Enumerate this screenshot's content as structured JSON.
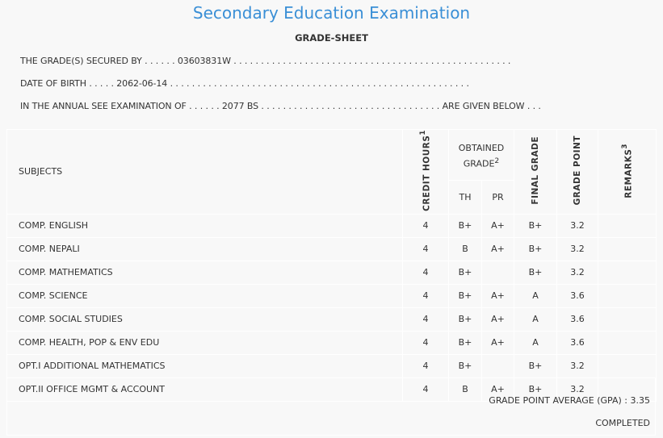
{
  "header": {
    "title": "Secondary Education Examination",
    "subtitle": "GRADE-SHEET"
  },
  "info": {
    "line1": "THE GRADE(S) SECURED BY . . . . . . 03603831W . . . . . . . . . . . . . . . . . . . . . . . . . . . . . . . . . . . . . . . . . . . . . . . . . . .",
    "line2": "DATE OF BIRTH . . . . . 2062-06-14 . . . . . . . . . . . . . . . . . . . . . . . . . . . . . . . . . . . . . . . . . . . . . . . . . . . . . . .",
    "line3": "IN THE ANNUAL SEE EXAMINATION OF . . . . . . 2077 BS . . . . . . . . . . . . . . . . . . . . . . . . . . . . . . . . . ARE GIVEN BELOW . . ."
  },
  "table": {
    "headers": {
      "subjects": "SUBJECTS",
      "credit": "CREDIT HOURS",
      "credit_sup": "1",
      "obtained": "OBTAINED GRADE",
      "obtained_sup": "2",
      "th": "TH",
      "pr": "PR",
      "final": "FINAL GRADE",
      "gp": "GRADE POINT",
      "remarks": "REMARKS",
      "remarks_sup": "3"
    },
    "rows": [
      {
        "subject": "COMP. ENGLISH",
        "credit": "4",
        "th": "B+",
        "pr": "A+",
        "final": "B+",
        "gp": "3.2",
        "remarks": ""
      },
      {
        "subject": "COMP. NEPALI",
        "credit": "4",
        "th": "B",
        "pr": "A+",
        "final": "B+",
        "gp": "3.2",
        "remarks": ""
      },
      {
        "subject": "COMP. MATHEMATICS",
        "credit": "4",
        "th": "B+",
        "pr": "",
        "final": "B+",
        "gp": "3.2",
        "remarks": ""
      },
      {
        "subject": "COMP. SCIENCE",
        "credit": "4",
        "th": "B+",
        "pr": "A+",
        "final": "A",
        "gp": "3.6",
        "remarks": ""
      },
      {
        "subject": "COMP. SOCIAL STUDIES",
        "credit": "4",
        "th": "B+",
        "pr": "A+",
        "final": "A",
        "gp": "3.6",
        "remarks": ""
      },
      {
        "subject": "COMP. HEALTH, POP & ENV EDU",
        "credit": "4",
        "th": "B+",
        "pr": "A+",
        "final": "A",
        "gp": "3.6",
        "remarks": ""
      },
      {
        "subject": "OPT.I ADDITIONAL MATHEMATICS",
        "credit": "4",
        "th": "B+",
        "pr": "",
        "final": "B+",
        "gp": "3.2",
        "remarks": ""
      },
      {
        "subject": "OPT.II OFFICE MGMT & ACCOUNT",
        "credit": "4",
        "th": "B",
        "pr": "A+",
        "final": "B+",
        "gp": "3.2",
        "remarks": ""
      }
    ]
  },
  "footer": {
    "gpa": "GRADE POINT AVERAGE (GPA) : 3.35",
    "status": "COMPLETED"
  },
  "colors": {
    "title": "#3a8fd6",
    "background": "#f8f8f8",
    "text": "#333333"
  }
}
